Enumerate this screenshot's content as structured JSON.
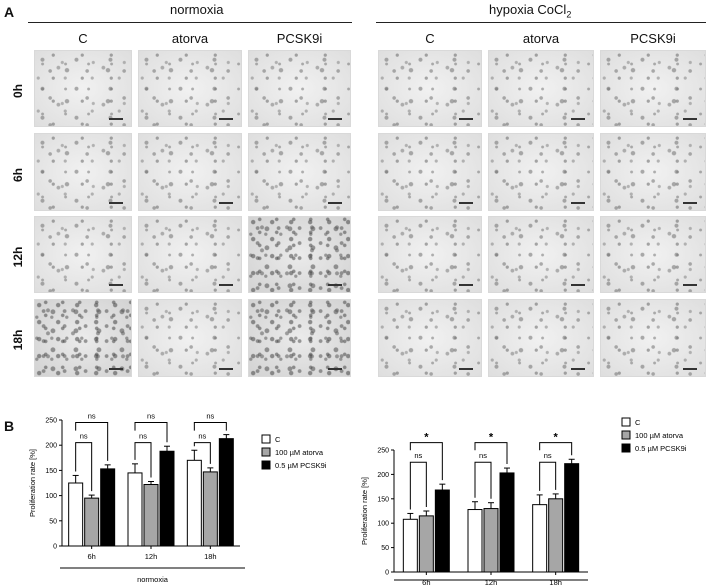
{
  "panel_a": {
    "letter": "A",
    "normoxia_title": "normoxia",
    "hypoxia_title": "hypoxia CoCl",
    "hypoxia_subscript": "2",
    "columns": [
      "C",
      "atorva",
      "PCSK9i"
    ],
    "rows": [
      "0h",
      "6h",
      "12h",
      "18h"
    ]
  },
  "panel_b": {
    "letter": "B"
  },
  "chart_data": [
    {
      "type": "bar",
      "title": "",
      "xlabel": "normoxia",
      "ylabel": "Proliferation rate [%]",
      "ylim": [
        0,
        250
      ],
      "yticks": [
        0,
        50,
        100,
        150,
        200,
        250
      ],
      "categories": [
        "6h",
        "12h",
        "18h"
      ],
      "series": [
        {
          "name": "C",
          "color": "#ffffff",
          "values": [
            125,
            145,
            170
          ],
          "errors": [
            15,
            18,
            20
          ]
        },
        {
          "name": "100 µM atorva",
          "color": "#a6a6a6",
          "values": [
            95,
            122,
            147
          ],
          "errors": [
            6,
            6,
            8
          ]
        },
        {
          "name": "0.5 µM PCSK9i",
          "color": "#000000",
          "values": [
            153,
            188,
            213
          ],
          "errors": [
            8,
            10,
            8
          ]
        }
      ],
      "significance": [
        {
          "pair": "C-atorva",
          "labels": [
            "ns",
            "ns",
            "ns"
          ]
        },
        {
          "pair": "C-PCSK9i",
          "labels": [
            "ns",
            "ns",
            "ns"
          ]
        }
      ],
      "legend_position": "right"
    },
    {
      "type": "bar",
      "title": "",
      "xlabel": "hypoxia CoCl",
      "xlabel_subscript": "2",
      "ylabel": "Proliferation rate [%]",
      "ylim": [
        0,
        250
      ],
      "yticks": [
        0,
        50,
        100,
        150,
        200,
        250
      ],
      "categories": [
        "6h",
        "12h",
        "18h"
      ],
      "series": [
        {
          "name": "C",
          "color": "#ffffff",
          "values": [
            108,
            128,
            138
          ],
          "errors": [
            12,
            16,
            20
          ]
        },
        {
          "name": "100 µM atorva",
          "color": "#a6a6a6",
          "values": [
            115,
            130,
            150
          ],
          "errors": [
            10,
            12,
            10
          ]
        },
        {
          "name": "0.5 µM PCSK9i",
          "color": "#000000",
          "values": [
            168,
            203,
            222
          ],
          "errors": [
            12,
            10,
            9
          ]
        }
      ],
      "significance": [
        {
          "pair": "C-atorva",
          "labels": [
            "ns",
            "ns",
            "ns"
          ]
        },
        {
          "pair": "C-PCSK9i",
          "labels": [
            "*",
            "*",
            "*"
          ]
        }
      ],
      "legend_position": "right"
    }
  ]
}
